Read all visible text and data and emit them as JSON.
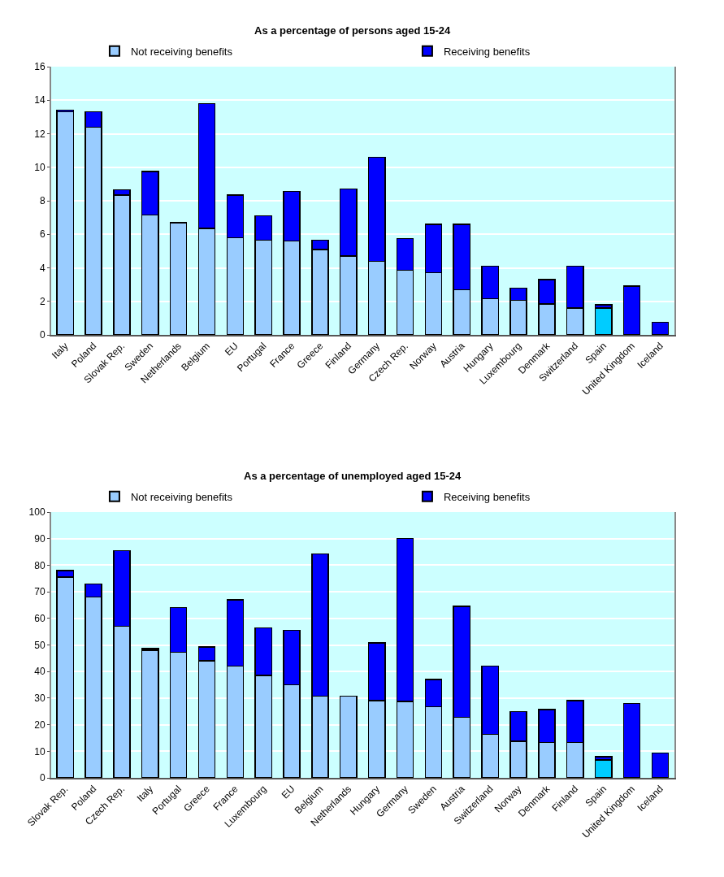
{
  "chart_data": [
    {
      "type": "bar",
      "title": "As a percentage of persons aged 15-24",
      "stacked": true,
      "legend": "top",
      "grid": "y",
      "ylim": [
        0,
        16
      ],
      "yticks": [
        0,
        2,
        4,
        6,
        8,
        10,
        12,
        14,
        16
      ],
      "categories": [
        "Italy",
        "Poland",
        "Slovak Rep.",
        "Sweden",
        "Netherlands",
        "Belgium",
        "EU",
        "Portugal",
        "France",
        "Greece",
        "Finland",
        "Germany",
        "Czech Rep.",
        "Norway",
        "Austria",
        "Hungary",
        "Luxembourg",
        "Denmark",
        "Switzerland",
        "Spain",
        "United Kingdom",
        "Iceland"
      ],
      "series": [
        {
          "name": "Not receiving benefits",
          "color": "#99ccff",
          "colors": [
            "#99ccff",
            "#99ccff",
            "#99ccff",
            "#99ccff",
            "#99ccff",
            "#99ccff",
            "#99ccff",
            "#99ccff",
            "#99ccff",
            "#99ccff",
            "#99ccff",
            "#99ccff",
            "#99ccff",
            "#99ccff",
            "#99ccff",
            "#99ccff",
            "#99ccff",
            "#99ccff",
            "#99ccff",
            "#00ccff",
            "#99ccff",
            "#99ccff"
          ],
          "values": [
            13.3,
            12.4,
            8.35,
            7.15,
            6.7,
            6.35,
            5.8,
            5.65,
            5.6,
            5.1,
            4.7,
            4.4,
            3.85,
            3.7,
            2.7,
            2.15,
            2.05,
            1.85,
            1.6,
            1.6,
            0,
            0
          ]
        },
        {
          "name": "Receiving benefits",
          "color": "#0000ff",
          "values": [
            0.1,
            0.9,
            0.3,
            2.6,
            null,
            7.45,
            2.55,
            1.45,
            2.95,
            0.55,
            4.0,
            6.2,
            1.9,
            2.9,
            3.9,
            1.95,
            0.75,
            1.45,
            2.5,
            0.2,
            2.9,
            0.75
          ]
        }
      ]
    },
    {
      "type": "bar",
      "title": "As a percentage of unemployed aged 15-24",
      "stacked": true,
      "legend": "top",
      "grid": "y",
      "ylim": [
        0,
        100
      ],
      "yticks": [
        0,
        10,
        20,
        30,
        40,
        50,
        60,
        70,
        80,
        90,
        100
      ],
      "categories": [
        "Slovak Rep.",
        "Poland",
        "Czech Rep.",
        "Italy",
        "Portugal",
        "Greece",
        "France",
        "Luxembourg",
        "EU",
        "Belgium",
        "Netherlands",
        "Hungary",
        "Germany",
        "Sweden",
        "Austria",
        "Switzerland",
        "Norway",
        "Denmark",
        "Finland",
        "Spain",
        "United Kingdom",
        "Iceland"
      ],
      "series": [
        {
          "name": "Not receiving benefits",
          "color": "#99ccff",
          "colors": [
            "#99ccff",
            "#99ccff",
            "#99ccff",
            "#99ccff",
            "#99ccff",
            "#99ccff",
            "#99ccff",
            "#99ccff",
            "#99ccff",
            "#99ccff",
            "#99ccff",
            "#99ccff",
            "#99ccff",
            "#99ccff",
            "#99ccff",
            "#99ccff",
            "#99ccff",
            "#99ccff",
            "#99ccff",
            "#00ccff",
            "#99ccff",
            "#99ccff"
          ],
          "values": [
            75.5,
            68,
            57,
            48,
            47.3,
            44,
            42,
            38.5,
            35,
            30.8,
            30.8,
            29,
            28.7,
            26.8,
            22.8,
            16.4,
            13.8,
            13.3,
            13.3,
            6.8,
            0,
            0
          ]
        },
        {
          "name": "Receiving benefits",
          "color": "#0000ff",
          "values": [
            2.5,
            5,
            28.5,
            0.7,
            16.7,
            5.3,
            25,
            18,
            20.5,
            53.4,
            null,
            21.8,
            61.3,
            10.2,
            41.7,
            25.6,
            11.2,
            12.4,
            15.7,
            1.2,
            28,
            9.3
          ]
        }
      ]
    }
  ]
}
